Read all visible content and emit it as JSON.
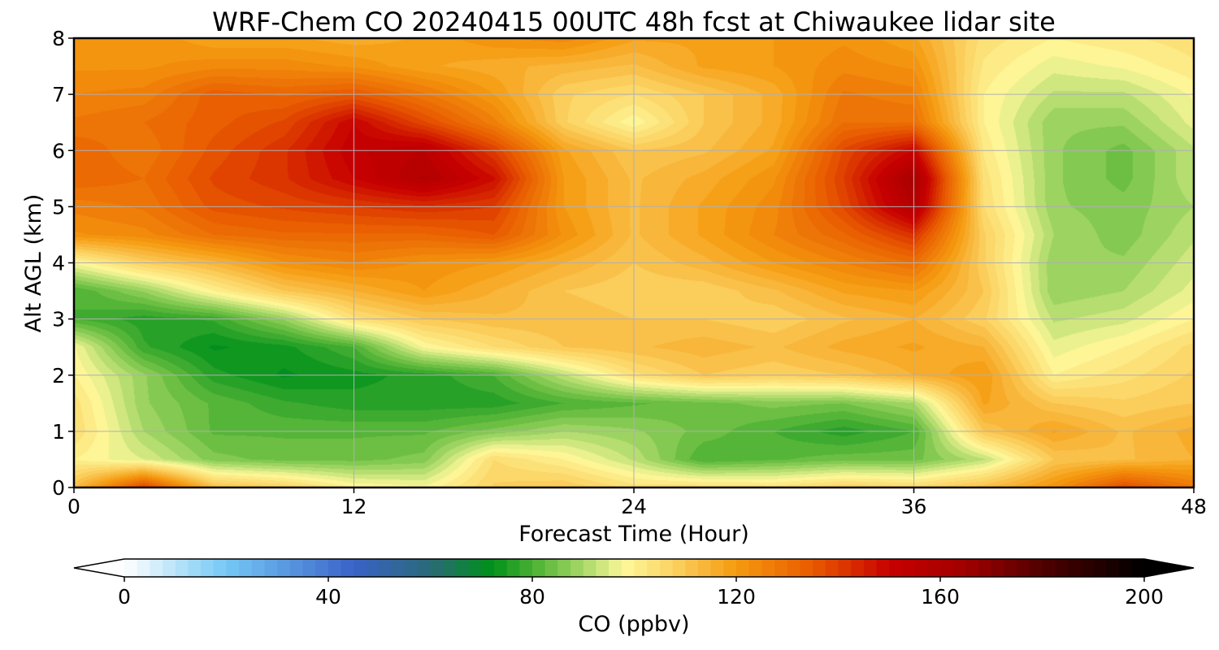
{
  "chart_data": {
    "type": "heatmap",
    "title": "WRF-Chem CO  20240415 00UTC 48h fcst at Chiwaukee lidar site",
    "xlabel": "Forecast Time (Hour)",
    "ylabel": "Alt AGL (km)",
    "xlim": [
      0,
      48
    ],
    "ylim": [
      0,
      8
    ],
    "xticks": [
      0,
      12,
      24,
      36,
      48
    ],
    "yticks": [
      0,
      1,
      2,
      3,
      4,
      5,
      6,
      7,
      8
    ],
    "grid": true,
    "z_unit": "ppbv",
    "colorbar": {
      "label": "CO  (ppbv)",
      "min": 0,
      "max": 200,
      "ticks": [
        0,
        40,
        80,
        120,
        160,
        200
      ],
      "extend": "both",
      "orientation": "horizontal",
      "colors": [
        {
          "v": 0,
          "c": "#ffffff"
        },
        {
          "v": 20,
          "c": "#74c8f5"
        },
        {
          "v": 45,
          "c": "#3a62c8"
        },
        {
          "v": 60,
          "c": "#2a6a78"
        },
        {
          "v": 72,
          "c": "#00901a"
        },
        {
          "v": 82,
          "c": "#5cb83a"
        },
        {
          "v": 90,
          "c": "#a8d868"
        },
        {
          "v": 98,
          "c": "#fef89a"
        },
        {
          "v": 108,
          "c": "#fbd060"
        },
        {
          "v": 120,
          "c": "#f59a10"
        },
        {
          "v": 135,
          "c": "#e85a00"
        },
        {
          "v": 150,
          "c": "#c80000"
        },
        {
          "v": 165,
          "c": "#a00000"
        },
        {
          "v": 180,
          "c": "#500000"
        },
        {
          "v": 200,
          "c": "#000000"
        }
      ]
    },
    "grid_hours": [
      0,
      3,
      6,
      9,
      12,
      15,
      18,
      21,
      24,
      27,
      30,
      33,
      36,
      39,
      42,
      45,
      48
    ],
    "grid_alt_km": [
      0,
      0.5,
      1,
      1.5,
      2,
      2.5,
      3,
      3.5,
      4,
      4.5,
      5,
      5.5,
      6,
      6.5,
      7,
      7.5,
      8
    ],
    "co_ppbv": [
      [
        112,
        140,
        112,
        108,
        100,
        98,
        108,
        110,
        104,
        105,
        104,
        108,
        106,
        112,
        122,
        138,
        128
      ],
      [
        100,
        95,
        86,
        84,
        84,
        86,
        105,
        100,
        92,
        80,
        82,
        84,
        84,
        92,
        110,
        112,
        115
      ],
      [
        105,
        90,
        82,
        82,
        82,
        82,
        86,
        90,
        88,
        84,
        80,
        76,
        80,
        110,
        118,
        112,
        116
      ],
      [
        104,
        88,
        82,
        78,
        76,
        76,
        76,
        80,
        82,
        84,
        86,
        85,
        90,
        118,
        110,
        108,
        110
      ],
      [
        100,
        88,
        76,
        72,
        74,
        76,
        80,
        92,
        104,
        110,
        108,
        110,
        115,
        120,
        100,
        104,
        108
      ],
      [
        98,
        78,
        72,
        74,
        80,
        98,
        105,
        110,
        112,
        114,
        112,
        116,
        118,
        115,
        96,
        100,
        106
      ],
      [
        80,
        76,
        78,
        88,
        104,
        110,
        112,
        112,
        110,
        110,
        108,
        112,
        115,
        108,
        92,
        94,
        100
      ],
      [
        80,
        88,
        100,
        110,
        115,
        120,
        115,
        110,
        108,
        108,
        112,
        118,
        120,
        110,
        88,
        90,
        96
      ],
      [
        98,
        108,
        114,
        122,
        125,
        122,
        120,
        115,
        110,
        114,
        120,
        125,
        130,
        108,
        88,
        88,
        94
      ],
      [
        122,
        124,
        130,
        132,
        132,
        132,
        135,
        122,
        112,
        118,
        125,
        132,
        142,
        108,
        90,
        86,
        92
      ],
      [
        126,
        128,
        136,
        138,
        140,
        142,
        140,
        120,
        112,
        118,
        124,
        138,
        158,
        105,
        88,
        86,
        90
      ],
      [
        132,
        130,
        138,
        142,
        150,
        158,
        148,
        120,
        112,
        116,
        122,
        140,
        162,
        104,
        88,
        84,
        92
      ],
      [
        132,
        128,
        136,
        142,
        152,
        155,
        140,
        118,
        110,
        112,
        118,
        138,
        150,
        102,
        88,
        84,
        92
      ],
      [
        128,
        130,
        134,
        138,
        150,
        138,
        126,
        108,
        98,
        110,
        116,
        130,
        130,
        100,
        88,
        88,
        96
      ],
      [
        125,
        126,
        134,
        132,
        135,
        128,
        120,
        108,
        105,
        110,
        116,
        128,
        126,
        100,
        92,
        92,
        98
      ],
      [
        122,
        122,
        124,
        124,
        122,
        118,
        116,
        114,
        112,
        118,
        120,
        124,
        122,
        102,
        96,
        98,
        102
      ],
      [
        120,
        122,
        118,
        118,
        116,
        118,
        122,
        124,
        118,
        118,
        120,
        122,
        118,
        104,
        100,
        102,
        104
      ]
    ]
  }
}
